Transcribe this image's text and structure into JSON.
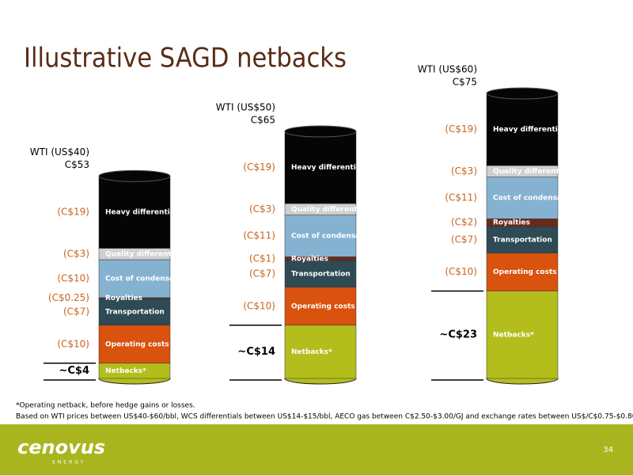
{
  "chart_data": {
    "type": "stacked-cylinder",
    "title": "Illustrative SAGD netbacks",
    "categories": [
      "WTI (US$40)",
      "WTI (US$50)",
      "WTI (US$60)"
    ],
    "totals": [
      53,
      65,
      75
    ],
    "total_labels": [
      "C$53",
      "C$65",
      "C$75"
    ],
    "series": [
      {
        "name": "Heavy differential",
        "color": "#050505",
        "values": [
          19,
          19,
          19
        ],
        "value_labels": [
          "(C$19)",
          "(C$19)",
          "(C$19)"
        ]
      },
      {
        "name": "Quality differential",
        "color": "#cfcfcf",
        "values": [
          3,
          3,
          3
        ],
        "value_labels": [
          "(C$3)",
          "(C$3)",
          "(C$3)"
        ]
      },
      {
        "name": "Cost of condensate",
        "color": "#86b2d2",
        "values": [
          10,
          11,
          11
        ],
        "value_labels": [
          "(C$10)",
          "(C$11)",
          "(C$11)"
        ]
      },
      {
        "name": "Royalties",
        "color": "#6a2a18",
        "values": [
          0.25,
          1,
          2
        ],
        "value_labels": [
          "(C$0.25)",
          "(C$1)",
          "(C$2)"
        ]
      },
      {
        "name": "Transportation",
        "color": "#2d4a55",
        "values": [
          7,
          7,
          7
        ],
        "value_labels": [
          "(C$7)",
          "(C$7)",
          "(C$7)"
        ]
      },
      {
        "name": "Operating costs",
        "color": "#d9520e",
        "values": [
          10,
          10,
          10
        ],
        "value_labels": [
          "(C$10)",
          "(C$10)",
          "(C$10)"
        ]
      },
      {
        "name": "Netbacks*",
        "color": "#b3bd1c",
        "values": [
          4,
          14,
          23
        ],
        "value_labels": [
          "~C$4",
          "~C$14",
          "~C$23"
        ]
      }
    ]
  },
  "footnotes": [
    "*Operating netback, before hedge gains or losses.",
    "Based on WTI prices between US$40-$60/bbl, WCS differentials between US$14-$15/bbl, AECO gas between C$2.50-$3.00/GJ and exchange rates between US$/C$0.75-$0.80."
  ],
  "footer": {
    "logo": "cenovus",
    "logo_sub": "ENERGY",
    "page_number": "34"
  }
}
